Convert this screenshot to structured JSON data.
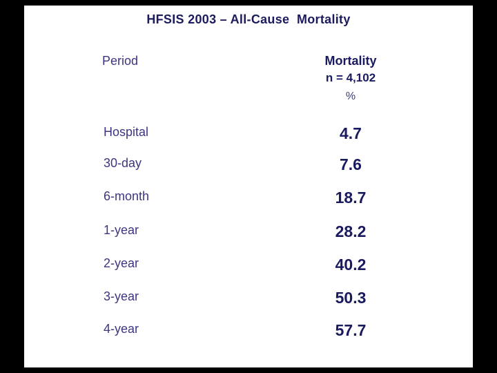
{
  "slide": {
    "title": "HFSIS 2003 – All-Cause  Mortality",
    "table": {
      "period_header": "Period",
      "mortality_header": "Mortality",
      "sample_size_label": "n = 4,102",
      "unit_label": "%",
      "rows": [
        {
          "period": "Hospital",
          "value": "4.7"
        },
        {
          "period": "30-day",
          "value": "7.6"
        },
        {
          "period": "6-month",
          "value": "18.7"
        },
        {
          "period": "1-year",
          "value": "28.2"
        },
        {
          "period": "2-year",
          "value": "40.2"
        },
        {
          "period": "3-year",
          "value": "50.3"
        },
        {
          "period": "4-year",
          "value": "57.7"
        }
      ]
    },
    "colors": {
      "frame_background": "#000000",
      "slide_background": "#ffffff",
      "title_text": "#1b1b5e",
      "label_text": "#3c3580",
      "value_text": "#191a60"
    }
  },
  "chart_data": {
    "type": "table",
    "title": "HFSIS 2003 – All-Cause Mortality",
    "sample_size": 4102,
    "columns": [
      "Period",
      "Mortality %"
    ],
    "categories": [
      "Hospital",
      "30-day",
      "6-month",
      "1-year",
      "2-year",
      "3-year",
      "4-year"
    ],
    "values": [
      4.7,
      7.6,
      18.7,
      28.2,
      40.2,
      50.3,
      57.7
    ],
    "unit": "%"
  }
}
